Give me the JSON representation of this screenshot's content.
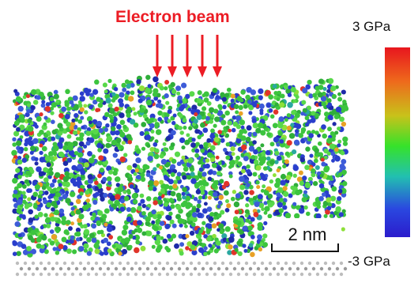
{
  "beam_label": "Electron beam",
  "beam_color": "#ec1c24",
  "colorbar": {
    "max_label": "3 GPa",
    "min_label": "-3 GPa",
    "gradient": [
      "#e8161e",
      "#ee6a1c",
      "#c8c21a",
      "#36e22a",
      "#22c0b0",
      "#2a48e0",
      "#2b1ccc"
    ]
  },
  "scale_bar": {
    "label": "2 nm"
  },
  "atom_colors": [
    "#3cc43e",
    "#58d84a",
    "#2fae3a",
    "#2a3ecc",
    "#3d5bd8",
    "#1e2aa8",
    "#e0342a",
    "#e8a126",
    "#8ee03a",
    "#2aa8a0"
  ]
}
